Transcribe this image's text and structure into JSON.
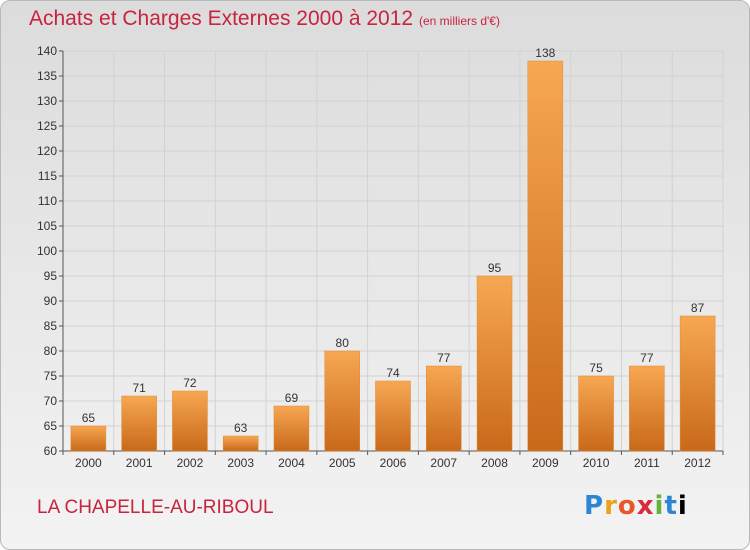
{
  "header": {
    "title": "Achats et Charges Externes 2000 à 2012",
    "unit": "(en milliers d'€)"
  },
  "footer": {
    "commune": "LA CHAPELLE-AU-RIBOUL",
    "logo": "Proxiti"
  },
  "colors": {
    "bar_light": "#f7a752",
    "bar_dark": "#c8691a",
    "text_accent": "#c8233f",
    "grid": "#d2d2d2"
  },
  "chart_data": {
    "type": "bar",
    "title": "Achats et Charges Externes 2000 à 2012",
    "xlabel": "",
    "ylabel": "",
    "categories": [
      "2000",
      "2001",
      "2002",
      "2003",
      "2004",
      "2005",
      "2006",
      "2007",
      "2008",
      "2009",
      "2010",
      "2011",
      "2012"
    ],
    "values": [
      65,
      71,
      72,
      63,
      69,
      80,
      74,
      77,
      95,
      138,
      75,
      77,
      87
    ],
    "ylim": [
      60,
      140
    ],
    "yticks": [
      60,
      65,
      70,
      75,
      80,
      85,
      90,
      95,
      100,
      105,
      110,
      115,
      120,
      125,
      130,
      135,
      140
    ],
    "grid": true,
    "legend": "none"
  }
}
